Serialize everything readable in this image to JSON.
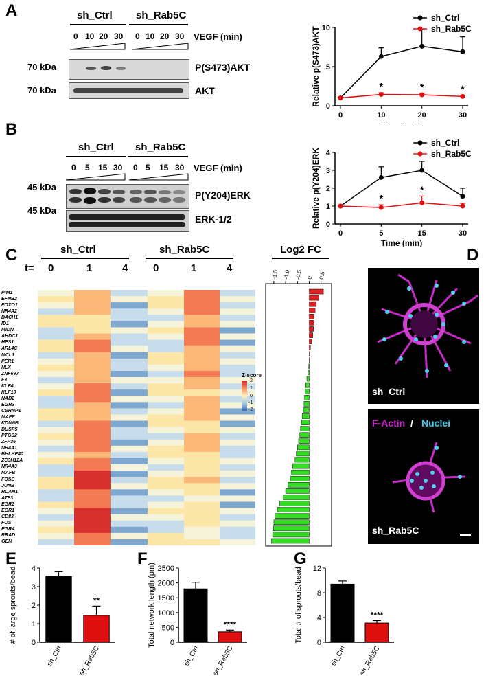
{
  "panels": {
    "A": "A",
    "B": "B",
    "C": "C",
    "D": "D",
    "E": "E",
    "F": "F",
    "G": "G"
  },
  "blot_a": {
    "group1": "sh_Ctrl",
    "group2": "sh_Rab5C",
    "time_label": "VEGF (min)",
    "times": [
      "0",
      "10",
      "20",
      "30",
      "0",
      "10",
      "20",
      "30"
    ],
    "rows": [
      {
        "kda": "70 kDa",
        "name": "P(S473)AKT"
      },
      {
        "kda": "70 kDa",
        "name": "AKT"
      }
    ]
  },
  "blot_b": {
    "group1": "sh_Ctrl",
    "group2": "sh_Rab5C",
    "time_label": "VEGF (min)",
    "times": [
      "0",
      "5",
      "15",
      "30",
      "0",
      "5",
      "15",
      "30"
    ],
    "rows": [
      {
        "kda": "45 kDa",
        "name": "P(Y204)ERK"
      },
      {
        "kda": "45 kDa",
        "name": "ERK-1/2"
      }
    ]
  },
  "heatmap": {
    "group1": "sh_Ctrl",
    "group2": "sh_Rab5C",
    "t_label": "t=",
    "timepoints": [
      "0",
      "1",
      "4",
      "0",
      "1",
      "4"
    ],
    "genes": [
      "PIM1",
      "EFNB2",
      "FOXO1",
      "NR4A2",
      "BACH1",
      "ID1",
      "MIDN",
      "AHDC1",
      "HES1",
      "ARL4C",
      "MCL1",
      "PER1",
      "HLX",
      "ZNF697",
      "F3",
      "KLF4",
      "KLF10",
      "NAB2",
      "EGR3",
      "CSRNP1",
      "MAFF",
      "KDM6B",
      "DUSP5",
      "PTGS2",
      "ZFP36",
      "NR4A1",
      "BHLHE40",
      "ZC3H12A",
      "NR4A3",
      "MAFB",
      "FOSB",
      "JUNB",
      "RCAN1",
      "ATF3",
      "EGR2",
      "EGR1",
      "CD83",
      "FOS",
      "EGR4",
      "RRAD",
      "GEM"
    ],
    "zscore": {
      "title": "Z-score",
      "ticks": [
        "2",
        "1",
        "0",
        "-1",
        "-2"
      ]
    },
    "log2fc": {
      "title": "Log2 FC",
      "ticks": [
        "-1.5",
        "-1.0",
        "-0.5",
        "0",
        "0.5"
      ]
    }
  },
  "micro": {
    "top_label": "sh_Ctrl",
    "bottom_label": "sh_Rab5C",
    "stain1": "F-Actin",
    "sep": " / ",
    "stain2": "Nuclei",
    "colors": {
      "actin": "#d020d0",
      "nuclei": "#40c8e8"
    }
  },
  "colors": {
    "ctrl": "#000000",
    "rab5c": "#e01010",
    "up": "#e02020",
    "down": "#33dd22"
  },
  "chart_data": [
    {
      "id": "A",
      "type": "line",
      "ylabel": "Relative p(S473)AKT",
      "xlabel": "Time (min)",
      "x": [
        0,
        10,
        20,
        30
      ],
      "ylim": [
        0,
        10
      ],
      "yticks": [
        0,
        5,
        10
      ],
      "legend": "top-right",
      "series": [
        {
          "name": "sh_Ctrl",
          "values": [
            1.0,
            6.3,
            7.6,
            6.9
          ],
          "err": [
            0.1,
            1.1,
            2.1,
            1.9
          ],
          "color": "#000000"
        },
        {
          "name": "sh_Rab5C",
          "values": [
            1.0,
            1.45,
            1.4,
            1.2
          ],
          "err": [
            0.1,
            0.2,
            0.2,
            0.15
          ],
          "color": "#e01010"
        }
      ],
      "annotations": [
        {
          "x": 10,
          "text": "*"
        },
        {
          "x": 20,
          "text": "*"
        },
        {
          "x": 30,
          "text": "*"
        }
      ]
    },
    {
      "id": "B",
      "type": "line",
      "ylabel": "Relative p(Y204)ERK",
      "xlabel": "Time (min)",
      "x": [
        0,
        5,
        15,
        30
      ],
      "ylim": [
        0,
        4
      ],
      "yticks": [
        0,
        1,
        2,
        3,
        4
      ],
      "legend": "top-right",
      "series": [
        {
          "name": "sh_Ctrl",
          "values": [
            1.0,
            2.6,
            3.0,
            1.55
          ],
          "err": [
            0.05,
            0.6,
            0.5,
            0.45
          ],
          "color": "#000000"
        },
        {
          "name": "sh_Rab5C",
          "values": [
            1.0,
            0.92,
            1.18,
            1.0
          ],
          "err": [
            0.05,
            0.15,
            0.38,
            0.15
          ],
          "color": "#e01010"
        }
      ],
      "annotations": [
        {
          "x": 5,
          "text": "*"
        },
        {
          "x": 15,
          "text": "*"
        }
      ]
    },
    {
      "id": "C-log2fc",
      "type": "bar",
      "orientation": "horizontal",
      "categories": [
        "PIM1",
        "EFNB2",
        "FOXO1",
        "NR4A2",
        "BACH1",
        "ID1",
        "MIDN",
        "AHDC1",
        "HES1",
        "ARL4C",
        "MCL1",
        "PER1",
        "HLX",
        "ZNF697",
        "F3",
        "KLF4",
        "KLF10",
        "NAB2",
        "EGR3",
        "CSRNP1",
        "MAFF",
        "KDM6B",
        "DUSP5",
        "PTGS2",
        "ZFP36",
        "NR4A1",
        "BHLHE40",
        "ZC3H12A",
        "NR4A3",
        "MAFB",
        "FOSB",
        "JUNB",
        "RCAN1",
        "ATF3",
        "EGR2",
        "EGR1",
        "CD83",
        "FOS",
        "EGR4",
        "RRAD",
        "GEM"
      ],
      "values": [
        0.6,
        0.4,
        0.3,
        0.25,
        0.2,
        0.2,
        0.18,
        0.15,
        0.1,
        0.05,
        0.02,
        0.01,
        -0.02,
        -0.05,
        -0.1,
        -0.15,
        -0.18,
        -0.2,
        -0.22,
        -0.25,
        -0.3,
        -0.33,
        -0.37,
        -0.4,
        -0.45,
        -0.5,
        -0.55,
        -0.6,
        -0.7,
        -0.75,
        -0.8,
        -0.9,
        -1.0,
        -1.1,
        -1.25,
        -1.35,
        -1.45,
        -1.5,
        -1.52,
        -1.55,
        -1.6
      ],
      "xlim": [
        -1.7,
        0.8
      ]
    },
    {
      "id": "E",
      "type": "bar",
      "categories": [
        "sh_Ctrl",
        "sh_Rab5C"
      ],
      "values": [
        3.55,
        1.45
      ],
      "err": [
        0.25,
        0.5
      ],
      "ylim": [
        0,
        4
      ],
      "yticks": [
        0,
        1,
        2,
        3,
        4
      ],
      "ylabel": "# of large sprouts/bead",
      "annotation": "**"
    },
    {
      "id": "F",
      "type": "bar",
      "categories": [
        "sh_Ctrl",
        "sh_Rab5C"
      ],
      "values": [
        1800,
        350
      ],
      "err": [
        220,
        60
      ],
      "ylim": [
        0,
        2500
      ],
      "yticks": [
        0,
        500,
        1000,
        1500,
        2000,
        2500
      ],
      "ylabel": "Total network length (μm)",
      "annotation": "****"
    },
    {
      "id": "G",
      "type": "bar",
      "categories": [
        "sh_Ctrl",
        "sh_Rab5C"
      ],
      "values": [
        9.4,
        3.1
      ],
      "err": [
        0.5,
        0.4
      ],
      "ylim": [
        0,
        12
      ],
      "yticks": [
        0,
        4,
        8,
        12
      ],
      "ylabel": "Total # of sprouts/bead",
      "annotation": "****"
    }
  ]
}
